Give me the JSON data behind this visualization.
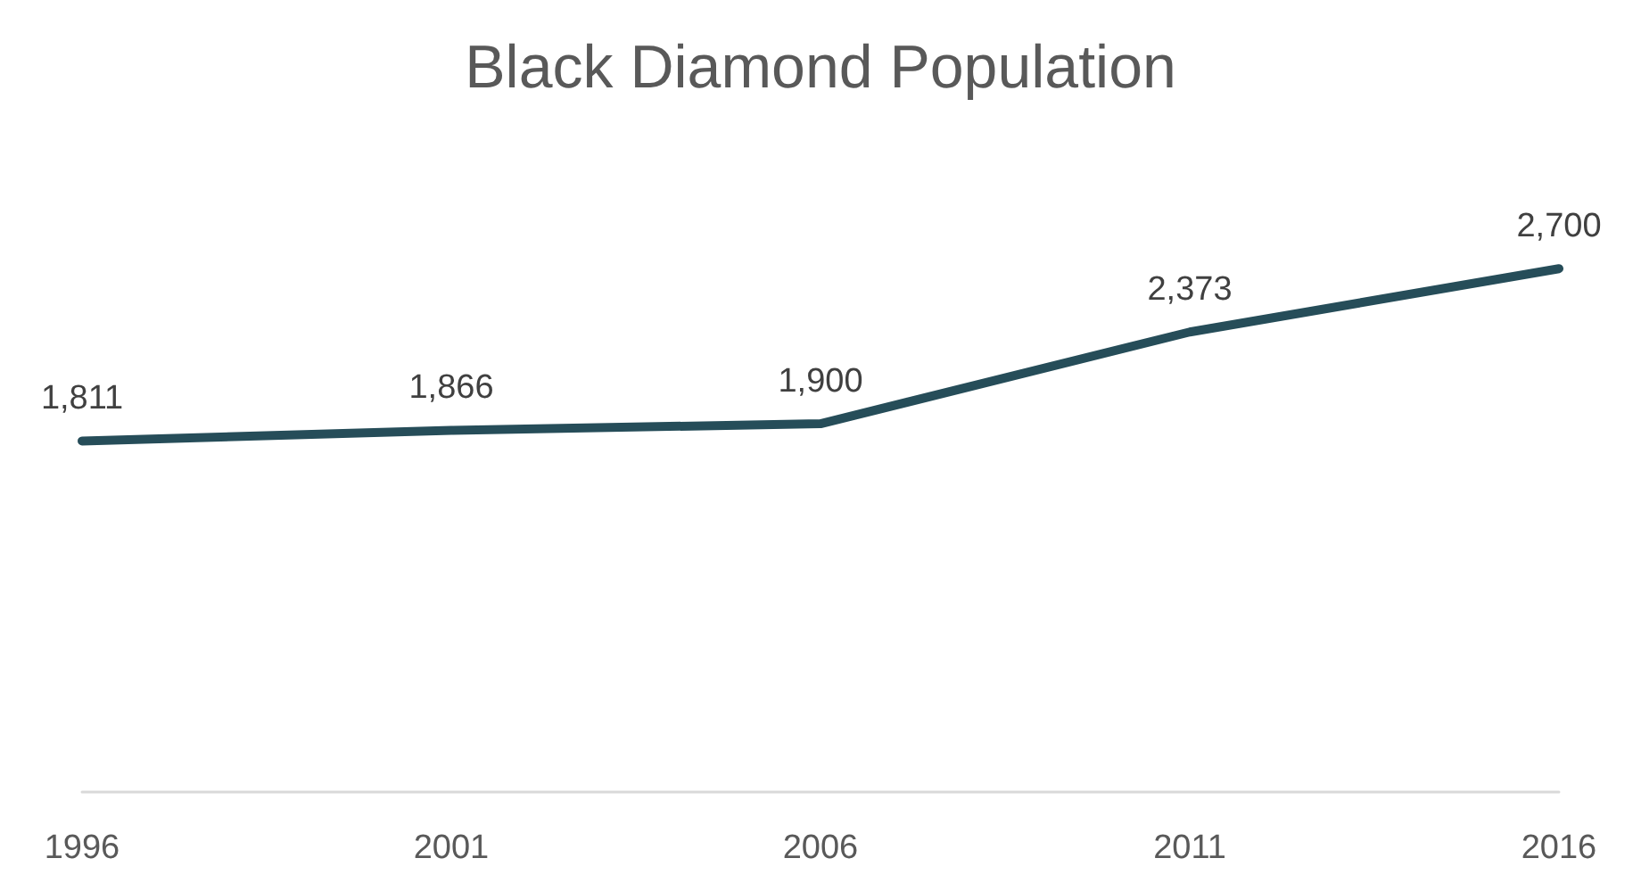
{
  "chart_data": {
    "type": "line",
    "title": "Black Diamond Population",
    "categories": [
      "1996",
      "2001",
      "2006",
      "2011",
      "2016"
    ],
    "series": [
      {
        "color": "#264d59",
        "values": [
          1811,
          1866,
          1900,
          2373,
          2700
        ],
        "value_labels": [
          "1,811",
          "1,866",
          "1,900",
          "2,373",
          "2,700"
        ]
      }
    ],
    "grid": false,
    "marker": "none",
    "line_style": "solid",
    "tick_labels": "x"
  }
}
